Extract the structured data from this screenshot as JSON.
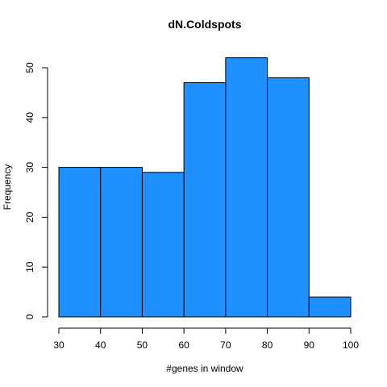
{
  "chart_data": {
    "type": "bar",
    "title": "dN.Coldspots",
    "xlabel": "#genes in window",
    "ylabel": "Frequency",
    "bins": [
      [
        30,
        40
      ],
      [
        40,
        50
      ],
      [
        50,
        60
      ],
      [
        60,
        70
      ],
      [
        70,
        80
      ],
      [
        80,
        90
      ],
      [
        90,
        100
      ]
    ],
    "values": [
      30,
      30,
      29,
      47,
      52,
      48,
      4
    ],
    "xlim": [
      30,
      100
    ],
    "ylim": [
      0,
      50
    ],
    "x_ticks": [
      30,
      40,
      50,
      60,
      70,
      80,
      90,
      100
    ],
    "y_ticks": [
      0,
      10,
      20,
      30,
      40,
      50
    ],
    "bar_color": "#1E90FF",
    "grid": false,
    "legend": "none"
  }
}
